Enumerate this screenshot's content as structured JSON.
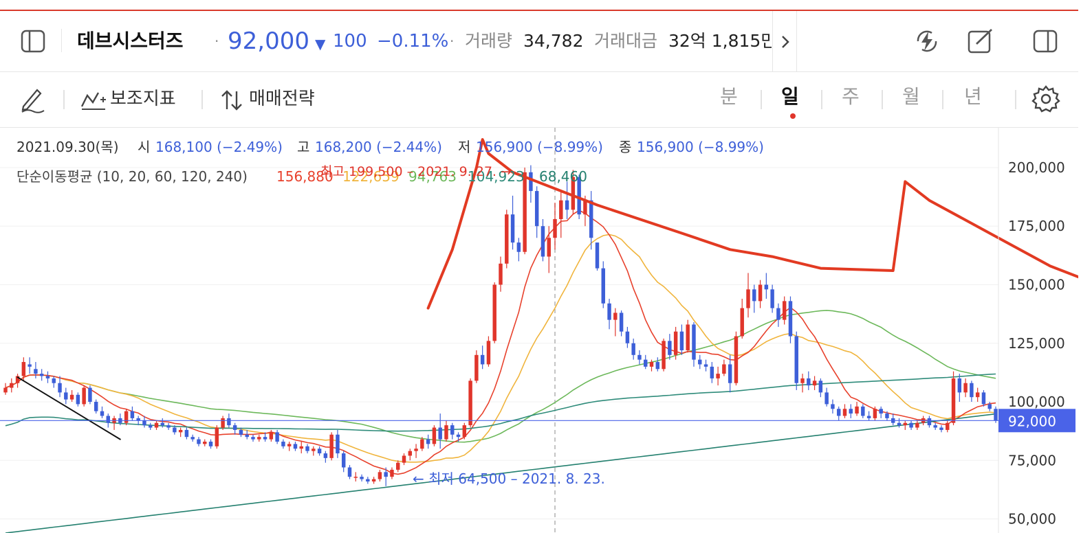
{
  "header": {
    "stock_name": "데브시스터즈",
    "dot": "·",
    "price": "92,000",
    "change_arrow": "▼",
    "change": "100",
    "change_pct": "−0.11%",
    "volume_label": "거래량",
    "volume_value": "34,782",
    "amount_label": "거래대금",
    "amount_value": "32억 1,815만"
  },
  "toolbar": {
    "indicator_label": "보조지표",
    "strategy_label": "매매전략",
    "periods": [
      "분",
      "일",
      "주",
      "월",
      "년"
    ],
    "active_period": "일"
  },
  "icons": {
    "sidebar_toggle": "sidebar-toggle-icon",
    "lightning": "lightning-icon",
    "edit": "edit-square-icon",
    "panel": "panel-icon",
    "pen": "pen-icon",
    "indicator": "indicator-icon",
    "strategy": "sort-arrows-icon",
    "settings": "gear-icon",
    "chevron": "chevron-right-icon"
  },
  "colors": {
    "up": "#e0352b",
    "down": "#3d5fd8",
    "ma10": "#e8412c",
    "ma20": "#f0b43c",
    "ma60": "#6cb85a",
    "ma120": "#2e8b7a",
    "ma240": "#24806f",
    "annotation": "#e23a22",
    "price_tag": "#4a63e8"
  },
  "chart_data": {
    "type": "candlestick",
    "info_line": {
      "date": "2021.09.30(목)",
      "open_label": "시",
      "open": "168,100 (−2.49%)",
      "high_label": "고",
      "high": "168,200 (−2.44%)",
      "low_label": "저",
      "low": "156,900 (−8.99%)",
      "close_label": "종",
      "close": "156,900 (−8.99%)"
    },
    "ma_legend": {
      "label": "단순이동평균 (10, 20, 60, 120, 240)",
      "values": [
        "156,880",
        "122,659",
        "94,763",
        "104,923",
        "68,460"
      ]
    },
    "annotations": {
      "high": "최고 199,500 – 2021. 9. 27. →",
      "low": "← 최저 64,500 – 2021. 8. 23."
    },
    "y_ticks": [
      200000,
      175000,
      150000,
      125000,
      100000,
      75000,
      50000
    ],
    "y_tick_labels": [
      "200,000",
      "175,000",
      "150,000",
      "125,000",
      "100,000",
      "75,000",
      "50,000"
    ],
    "ylim": [
      44000,
      217000
    ],
    "current_price": 92000,
    "current_price_label": "92,000",
    "ohlc": [
      [
        104,
        108,
        103,
        106
      ],
      [
        106,
        110,
        104,
        108
      ],
      [
        108,
        112,
        106,
        111
      ],
      [
        111,
        119,
        109,
        117
      ],
      [
        116,
        119,
        112,
        115
      ],
      [
        114,
        117,
        110,
        112
      ],
      [
        112,
        114,
        109,
        111
      ],
      [
        111,
        113,
        108,
        110
      ],
      [
        110,
        111,
        106,
        108
      ],
      [
        108,
        111,
        102,
        104
      ],
      [
        104,
        106,
        99,
        101
      ],
      [
        101,
        105,
        100,
        103
      ],
      [
        103,
        104,
        98,
        99
      ],
      [
        99,
        107,
        98,
        106
      ],
      [
        106,
        107,
        99,
        100
      ],
      [
        100,
        101,
        95,
        96
      ],
      [
        96,
        98,
        93,
        94
      ],
      [
        94,
        95,
        89,
        91
      ],
      [
        91,
        94,
        88,
        93
      ],
      [
        93,
        95,
        90,
        91
      ],
      [
        91,
        97,
        90,
        96
      ],
      [
        96,
        98,
        92,
        93
      ],
      [
        93,
        94,
        90,
        92
      ],
      [
        92,
        94,
        89,
        90
      ],
      [
        90,
        91,
        88,
        89
      ],
      [
        89,
        92,
        88,
        91
      ],
      [
        91,
        93,
        89,
        90
      ],
      [
        90,
        91,
        88,
        89
      ],
      [
        89,
        90,
        86,
        87
      ],
      [
        87,
        89,
        85,
        88
      ],
      [
        88,
        89,
        84,
        85
      ],
      [
        85,
        86,
        83,
        84
      ],
      [
        84,
        85,
        81,
        82
      ],
      [
        82,
        84,
        81,
        83
      ],
      [
        83,
        84,
        80,
        81
      ],
      [
        81,
        90,
        80,
        89
      ],
      [
        89,
        94,
        88,
        93
      ],
      [
        93,
        95,
        89,
        90
      ],
      [
        90,
        91,
        86,
        88
      ],
      [
        88,
        89,
        85,
        86
      ],
      [
        86,
        88,
        84,
        85
      ],
      [
        85,
        86,
        83,
        84
      ],
      [
        84,
        86,
        83,
        85
      ],
      [
        85,
        87,
        83,
        84
      ],
      [
        84,
        88,
        83,
        87
      ],
      [
        87,
        88,
        82,
        83
      ],
      [
        83,
        84,
        80,
        81
      ],
      [
        81,
        83,
        79,
        82
      ],
      [
        82,
        83,
        79,
        80
      ],
      [
        80,
        83,
        78,
        81
      ],
      [
        81,
        82,
        78,
        79
      ],
      [
        79,
        81,
        77,
        80
      ],
      [
        80,
        81,
        77,
        78
      ],
      [
        78,
        79,
        74,
        76
      ],
      [
        76,
        87,
        75,
        86
      ],
      [
        86,
        88,
        76,
        78
      ],
      [
        78,
        79,
        70,
        72
      ],
      [
        72,
        73,
        67,
        68
      ],
      [
        68,
        70,
        66,
        68
      ],
      [
        68,
        69,
        66,
        67
      ],
      [
        67,
        68,
        65,
        66
      ],
      [
        66,
        68,
        65,
        67
      ],
      [
        67,
        71,
        66,
        70
      ],
      [
        70,
        72,
        64,
        68
      ],
      [
        68,
        72,
        67,
        71
      ],
      [
        71,
        75,
        70,
        74
      ],
      [
        74,
        78,
        73,
        77
      ],
      [
        77,
        80,
        75,
        79
      ],
      [
        79,
        82,
        76,
        80
      ],
      [
        80,
        85,
        79,
        84
      ],
      [
        84,
        86,
        80,
        82
      ],
      [
        82,
        90,
        81,
        89
      ],
      [
        89,
        95,
        80,
        84
      ],
      [
        84,
        92,
        83,
        90
      ],
      [
        90,
        91,
        84,
        86
      ],
      [
        86,
        87,
        83,
        85
      ],
      [
        85,
        91,
        84,
        90
      ],
      [
        90,
        110,
        89,
        109
      ],
      [
        109,
        122,
        108,
        120
      ],
      [
        120,
        124,
        114,
        116
      ],
      [
        116,
        128,
        115,
        126
      ],
      [
        126,
        151,
        125,
        150
      ],
      [
        150,
        162,
        147,
        159
      ],
      [
        159,
        182,
        157,
        180
      ],
      [
        180,
        188,
        165,
        168
      ],
      [
        168,
        170,
        160,
        164
      ],
      [
        164,
        200,
        163,
        198
      ],
      [
        198,
        201,
        185,
        190
      ],
      [
        190,
        192,
        170,
        175
      ],
      [
        175,
        178,
        160,
        162
      ],
      [
        162,
        175,
        155,
        170
      ],
      [
        170,
        185,
        165,
        178
      ],
      [
        178,
        190,
        170,
        186
      ],
      [
        186,
        194,
        178,
        182
      ],
      [
        182,
        199,
        180,
        196
      ],
      [
        196,
        197,
        178,
        180
      ],
      [
        180,
        188,
        175,
        186
      ],
      [
        186,
        190,
        165,
        170
      ],
      [
        168,
        168,
        156,
        157
      ],
      [
        157,
        160,
        140,
        142
      ],
      [
        142,
        144,
        131,
        135
      ],
      [
        135,
        140,
        128,
        138
      ],
      [
        138,
        139,
        128,
        130
      ],
      [
        130,
        132,
        123,
        125
      ],
      [
        125,
        127,
        118,
        120
      ],
      [
        120,
        122,
        116,
        118
      ],
      [
        118,
        120,
        114,
        115
      ],
      [
        115,
        118,
        113,
        117
      ],
      [
        117,
        119,
        113,
        114
      ],
      [
        114,
        127,
        113,
        126
      ],
      [
        126,
        129,
        118,
        120
      ],
      [
        120,
        132,
        118,
        130
      ],
      [
        130,
        133,
        120,
        122
      ],
      [
        122,
        135,
        121,
        133
      ],
      [
        133,
        134,
        115,
        118
      ],
      [
        118,
        120,
        114,
        116
      ],
      [
        116,
        118,
        113,
        115
      ],
      [
        115,
        117,
        108,
        110
      ],
      [
        110,
        115,
        107,
        112
      ],
      [
        112,
        118,
        111,
        116
      ],
      [
        116,
        120,
        104,
        108
      ],
      [
        108,
        130,
        107,
        128
      ],
      [
        128,
        144,
        127,
        140
      ],
      [
        140,
        155,
        136,
        148
      ],
      [
        148,
        150,
        138,
        143
      ],
      [
        143,
        152,
        140,
        150
      ],
      [
        150,
        155,
        144,
        148
      ],
      [
        148,
        150,
        138,
        140
      ],
      [
        140,
        142,
        132,
        135
      ],
      [
        135,
        145,
        133,
        143
      ],
      [
        143,
        145,
        125,
        128
      ],
      [
        128,
        130,
        105,
        108
      ],
      [
        108,
        112,
        104,
        110
      ],
      [
        110,
        113,
        105,
        107
      ],
      [
        107,
        111,
        105,
        109
      ],
      [
        109,
        110,
        102,
        104
      ],
      [
        104,
        106,
        98,
        99
      ],
      [
        99,
        101,
        95,
        97
      ],
      [
        97,
        98,
        92,
        94
      ],
      [
        94,
        99,
        93,
        97
      ],
      [
        97,
        99,
        93,
        95
      ],
      [
        95,
        100,
        94,
        98
      ],
      [
        98,
        99,
        93,
        94
      ],
      [
        94,
        96,
        92,
        93
      ],
      [
        93,
        98,
        92,
        97
      ],
      [
        97,
        98,
        93,
        95
      ],
      [
        95,
        96,
        92,
        93
      ],
      [
        93,
        95,
        90,
        91
      ],
      [
        91,
        93,
        89,
        90
      ],
      [
        90,
        92,
        88,
        91
      ],
      [
        91,
        92,
        88,
        89
      ],
      [
        89,
        92,
        88,
        91
      ],
      [
        91,
        94,
        90,
        93
      ],
      [
        93,
        94,
        89,
        90
      ],
      [
        90,
        91,
        88,
        89
      ],
      [
        89,
        90,
        87,
        88
      ],
      [
        88,
        92,
        87,
        91
      ],
      [
        91,
        113,
        90,
        110
      ],
      [
        110,
        112,
        100,
        104
      ],
      [
        104,
        110,
        102,
        108
      ],
      [
        108,
        109,
        100,
        102
      ],
      [
        102,
        106,
        100,
        104
      ],
      [
        104,
        105,
        98,
        99
      ],
      [
        99,
        100,
        96,
        97
      ],
      [
        97,
        98,
        91,
        92
      ]
    ],
    "pen_lines": [
      {
        "name": "black-trendline",
        "color": "#111111",
        "points": [
          [
            2,
            110.5
          ],
          [
            19,
            84
          ]
        ]
      },
      {
        "name": "red-arrow-1",
        "color": "#e23a22",
        "points": [
          [
            70,
            140
          ],
          [
            74,
            165
          ],
          [
            78,
            200
          ],
          [
            79,
            212
          ],
          [
            80,
            206
          ],
          [
            84,
            198
          ],
          [
            98,
            184
          ],
          [
            112,
            172
          ],
          [
            120,
            165
          ],
          [
            127,
            162
          ],
          [
            135,
            157
          ],
          [
            147,
            156
          ],
          [
            149,
            194
          ],
          [
            153,
            186
          ],
          [
            163,
            172
          ],
          [
            173,
            158
          ],
          [
            185,
            146
          ],
          [
            200,
            134
          ],
          [
            212,
            123
          ],
          [
            217,
            120
          ],
          [
            216,
            129
          ],
          [
            215,
            132
          ],
          [
            215,
            138
          ],
          [
            215,
            134
          ]
        ]
      },
      {
        "name": "red-arrow-2",
        "color": "#e23a22",
        "points": [
          [
            195,
            150
          ],
          [
            197,
            158
          ],
          [
            212,
            148
          ],
          [
            225,
            138
          ],
          [
            240,
            128
          ],
          [
            251,
            122
          ],
          [
            259,
            117
          ]
        ]
      }
    ]
  }
}
